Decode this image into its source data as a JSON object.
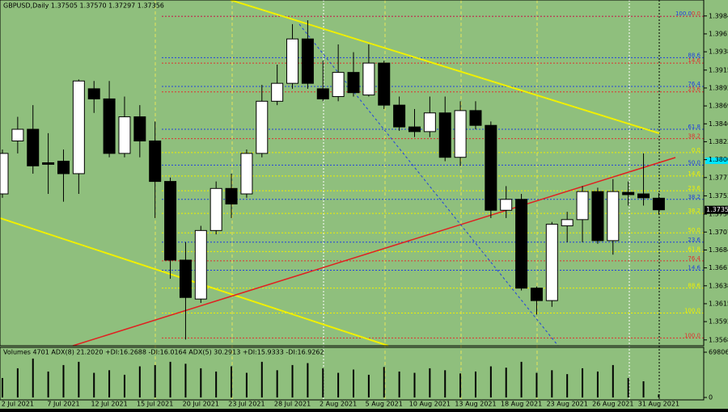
{
  "chart_data": {
    "type": "candlestick",
    "header": "GBPUSD,Daily  1.37505 1.37570 1.37297 1.37356",
    "categories": [
      null,
      "2 Jul 2021",
      null,
      null,
      "7 Jul 2021",
      null,
      null,
      "12 Jul 2021",
      null,
      null,
      "15 Jul 2021",
      null,
      null,
      "20 Jul 2021",
      null,
      null,
      "23 Jul 2021",
      null,
      null,
      "28 Jul 2021",
      null,
      null,
      "2 Aug 2021",
      null,
      null,
      "5 Aug 2021",
      null,
      null,
      "10 Aug 2021",
      null,
      null,
      "13 Aug 2021",
      null,
      null,
      "18 Aug 2021",
      null,
      null,
      "23 Aug 2021",
      null,
      null,
      "26 Aug 2021",
      null,
      null,
      "31 Aug 2021"
    ],
    "open": [
      1.3756,
      1.3824,
      1.3839,
      1.3796,
      1.3798,
      1.3782,
      1.3891,
      1.3878,
      1.3808,
      1.3855,
      1.3824,
      1.3772,
      1.3671,
      1.3621,
      1.3709,
      1.3763,
      1.3756,
      1.3808,
      1.3875,
      1.3898,
      1.3955,
      1.3891,
      1.3881,
      1.3912,
      1.3883,
      1.3924,
      1.387,
      1.3842,
      1.3836,
      1.386,
      1.3803,
      1.3863,
      1.3844,
      1.3735,
      1.3749,
      1.3635,
      1.3619,
      1.3715,
      1.3723,
      1.3759,
      1.3696,
      1.3758,
      1.3756,
      1.37505
    ],
    "high": [
      1.3813,
      1.3855,
      1.387,
      1.3834,
      1.3813,
      1.3903,
      1.3901,
      1.3901,
      1.3881,
      1.387,
      1.3849,
      1.3777,
      1.3694,
      1.3715,
      1.3772,
      1.3782,
      1.3813,
      1.3896,
      1.3922,
      1.3974,
      1.3979,
      1.3927,
      1.3948,
      1.3938,
      1.3948,
      1.3927,
      1.3881,
      1.3865,
      1.3881,
      1.3881,
      1.3875,
      1.3875,
      1.3849,
      1.3766,
      1.3756,
      1.3637,
      1.372,
      1.3733,
      1.3766,
      1.3764,
      1.3775,
      1.3772,
      1.3808,
      1.3757
    ],
    "low": [
      1.3751,
      1.3808,
      1.3782,
      1.3756,
      1.3746,
      1.3756,
      1.386,
      1.3803,
      1.3803,
      1.3803,
      1.3725,
      1.3647,
      1.3569,
      1.3616,
      1.3704,
      1.3725,
      1.3751,
      1.3803,
      1.387,
      1.3891,
      1.3891,
      1.3875,
      1.3875,
      1.3881,
      1.3881,
      1.3865,
      1.3837,
      1.3829,
      1.3829,
      1.3798,
      1.3792,
      1.3839,
      1.3725,
      1.3725,
      1.3632,
      1.3601,
      1.3611,
      1.3694,
      1.3694,
      1.3692,
      1.3678,
      1.3741,
      1.3741,
      1.37297
    ],
    "close": [
      1.3808,
      1.3839,
      1.3792,
      1.3794,
      1.3782,
      1.3901,
      1.3878,
      1.3808,
      1.3855,
      1.3824,
      1.3772,
      1.3671,
      1.3623,
      1.3709,
      1.3763,
      1.3743,
      1.3808,
      1.3875,
      1.3898,
      1.3955,
      1.3898,
      1.3878,
      1.3912,
      1.3886,
      1.3924,
      1.387,
      1.3842,
      1.3836,
      1.386,
      1.3803,
      1.3863,
      1.3844,
      1.3735,
      1.3749,
      1.3635,
      1.3619,
      1.3717,
      1.3723,
      1.3759,
      1.3696,
      1.3759,
      1.3755,
      1.3751,
      1.37356
    ],
    "up_color": "#ffffff",
    "down_color": "#000000",
    "ylim": [
      1.3561,
      1.4005
    ],
    "yticks": [
      1.39845,
      {
        "value": 1.39615,
        "label": "1.39615"
      },
      {
        "value": 1.39385,
        "label": "1.39385"
      },
      {
        "value": 1.3915,
        "label": "1.39150"
      },
      {
        "value": 1.3892,
        "label": "1.38920"
      },
      {
        "value": 1.3869,
        "label": "1.38690"
      },
      {
        "value": 1.3846,
        "label": "1.38460"
      },
      {
        "value": 1.3823,
        "label": "1.38230"
      },
      {
        "value": 1.38,
        "label": "1.38000"
      },
      {
        "value": 1.3777,
        "label": "1.37770"
      },
      1.37535,
      {
        "value": 1.373,
        "label": "1.37300"
      },
      {
        "value": 1.3707,
        "label": "1.37070"
      },
      {
        "value": 1.3684,
        "label": "1.36840"
      },
      {
        "value": 1.3661,
        "label": "1.36610"
      },
      {
        "value": 1.3638,
        "label": "1.36380"
      },
      {
        "value": 1.3615,
        "label": "1.36150"
      },
      {
        "value": 1.3592,
        "label": "1.35920"
      },
      1.35685
    ],
    "last_price": 1.37356,
    "levels": [
      {
        "label": "100.0",
        "value": 1.3984,
        "color": "#2040e0"
      },
      {
        "label": "0.0",
        "value": 1.3984,
        "color": "#e03030"
      },
      {
        "label": "88.6",
        "value": 1.3931,
        "color": "#2040e0"
      },
      {
        "label": "14.6",
        "value": 1.3924,
        "color": "#e03030"
      },
      {
        "label": "76.4",
        "value": 1.3894,
        "color": "#2040e0"
      },
      {
        "label": "23.6",
        "value": 1.3887,
        "color": "#e03030"
      },
      {
        "label": "61.8",
        "value": 1.3839,
        "color": "#2040e0"
      },
      {
        "label": "38.2",
        "value": 1.3827,
        "color": "#e03030"
      },
      {
        "label": "0.0",
        "value": 1.3809,
        "color": "#f0f000"
      },
      {
        "label": "50.0",
        "value": 1.3793,
        "color": "#2040e0"
      },
      {
        "label": "14.6",
        "value": 1.3779,
        "color": "#f0f000"
      },
      {
        "label": "23.6",
        "value": 1.376,
        "color": "#f0f000"
      },
      {
        "label": "38.2",
        "value": 1.3749,
        "color": "#2040e0"
      },
      {
        "label": "38.2",
        "value": 1.3731,
        "color": "#f0f000"
      },
      {
        "label": "50.0",
        "value": 1.3706,
        "color": "#f0f000"
      },
      {
        "label": "23.6",
        "value": 1.3694,
        "color": "#2040e0"
      },
      {
        "label": "61.8",
        "value": 1.3682,
        "color": "#f0f000"
      },
      {
        "label": "76.4",
        "value": 1.367,
        "color": "#e03030"
      },
      {
        "label": "14.6",
        "value": 1.3658,
        "color": "#2040e0"
      },
      {
        "label": "88.6",
        "value": 1.3635,
        "color": "#f0f000"
      },
      {
        "label": "100.0",
        "value": 1.3603,
        "color": "#f0f000"
      },
      {
        "label": "100.0",
        "value": 1.3571,
        "color": "#e03030"
      }
    ],
    "volume_panel": {
      "header": "Volumes 4701  ADX(8) 21.2020 +DI:16.2688 -DI:16.0164  ADX(5) 30.2913 +DI:15.9333 -DI:16.9262",
      "values": [
        30000,
        45000,
        60000,
        40000,
        50000,
        55000,
        38000,
        42000,
        35000,
        48000,
        50000,
        55000,
        52000,
        45000,
        40000,
        48000,
        38000,
        55000,
        42000,
        50000,
        53000,
        45000,
        38000,
        43000,
        35000,
        47000,
        40000,
        38000,
        45000,
        42000,
        37000,
        40000,
        48000,
        46000,
        55000,
        38000,
        42000,
        36000,
        45000,
        40000,
        50000,
        30000,
        25000,
        4701
      ],
      "color": "#000000",
      "ylim": [
        0,
        69806
      ],
      "yticks": [
        69806,
        0
      ]
    }
  }
}
